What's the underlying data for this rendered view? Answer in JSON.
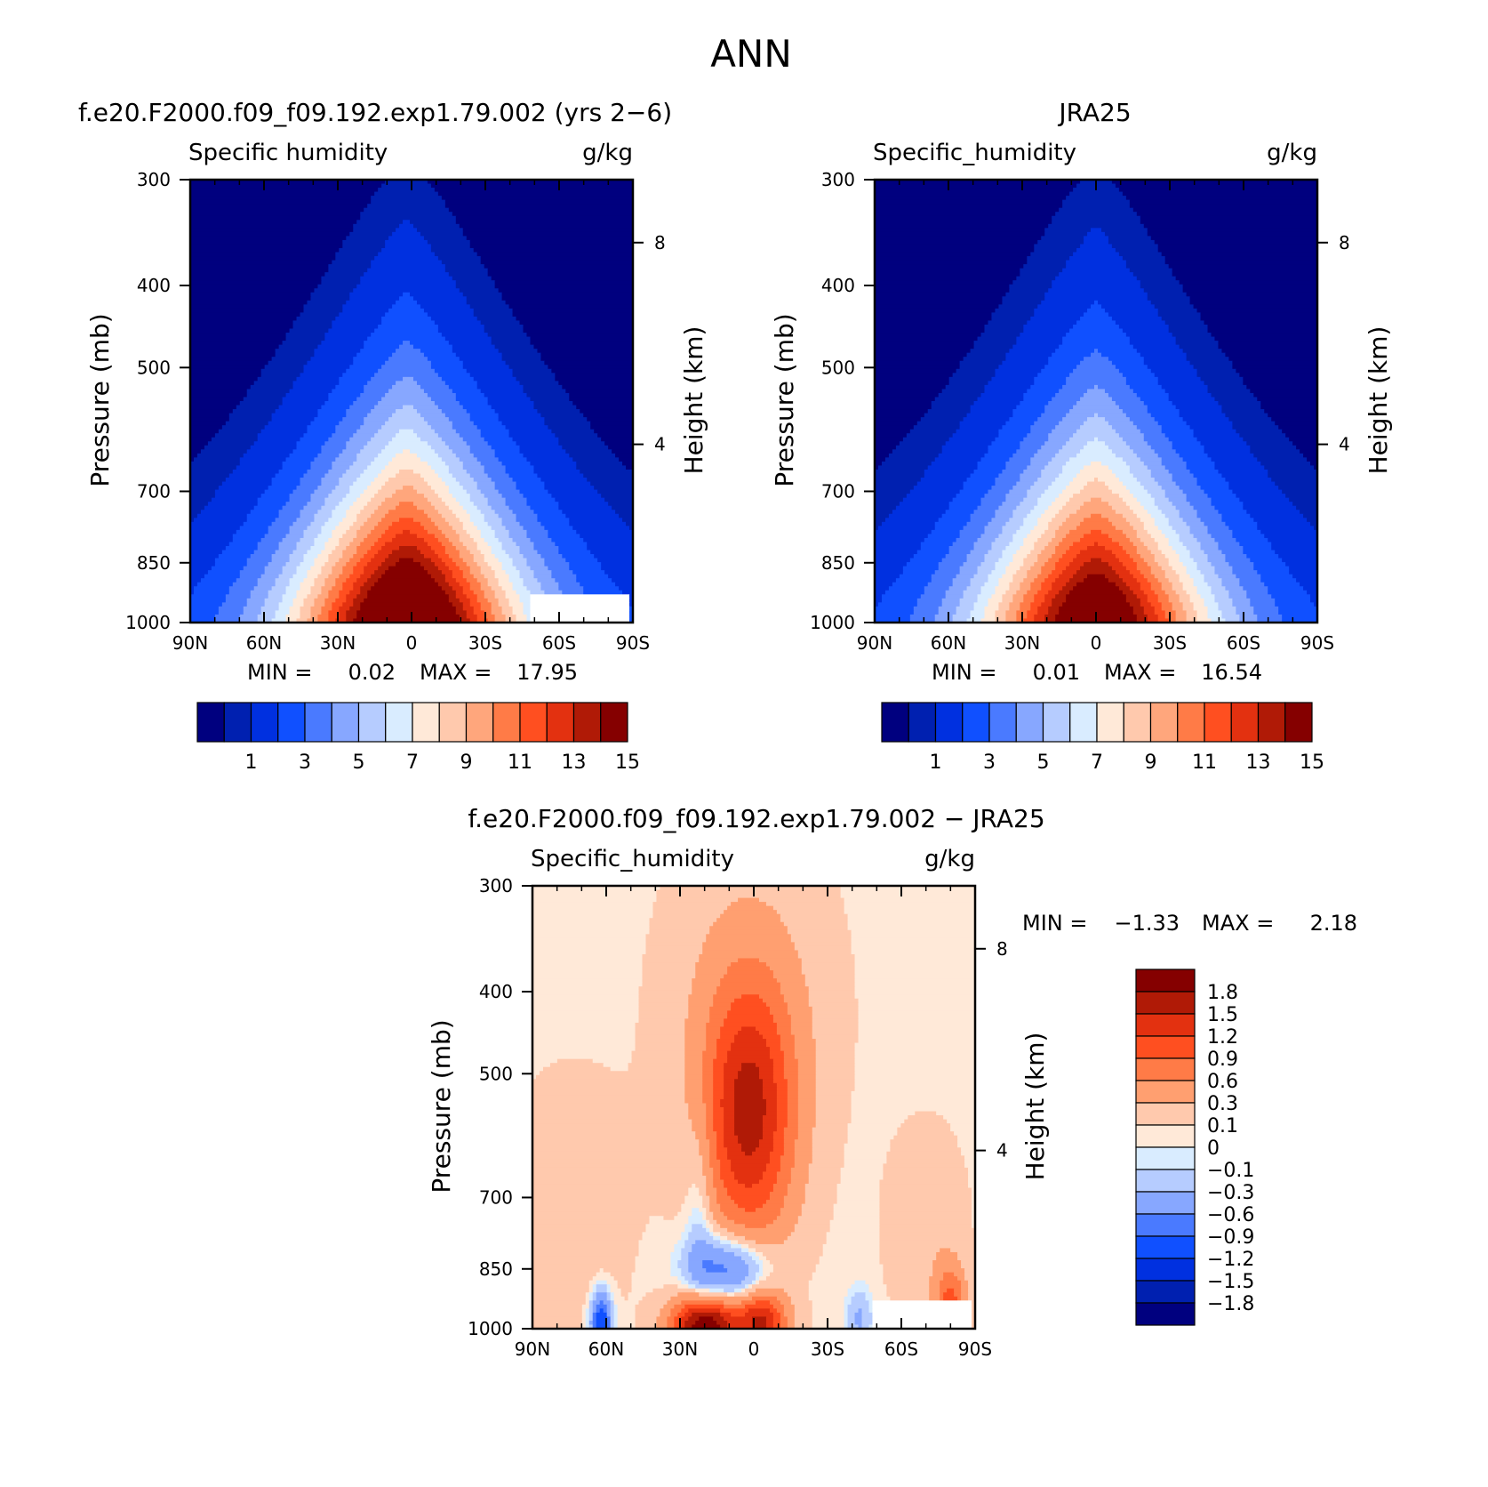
{
  "figure": {
    "title": "ANN"
  },
  "palettes": {
    "abs": [
      "#00007f",
      "#0020b0",
      "#0030e0",
      "#1050ff",
      "#4a7aff",
      "#87a7ff",
      "#b6ccff",
      "#d9ecff",
      "#ffe9d8",
      "#ffc9ad",
      "#ffa67c",
      "#ff7b47",
      "#ff4f20",
      "#e33110",
      "#b01a06",
      "#850000"
    ],
    "diff": [
      "#00007f",
      "#0020b0",
      "#0030e0",
      "#1050ff",
      "#4a7aff",
      "#87a7ff",
      "#b6ccff",
      "#d9ecff",
      "#ffe9d8",
      "#ffc9ad",
      "#ff9f70",
      "#ff7b47",
      "#ff4f20",
      "#e33110",
      "#b01a06",
      "#850000"
    ]
  },
  "chart_data": [
    {
      "type": "heatmap",
      "id": "model",
      "title": "f.e20.F2000.f09_f09.192.exp1.79.002 (yrs 2−6)",
      "left_label": "Specific humidity",
      "right_label": "g/kg",
      "ylabel": "Pressure (mb)",
      "ylabel_right": "Height (km)",
      "x_ticks": [
        "90N",
        "60N",
        "30N",
        "0",
        "30S",
        "60S",
        "90S"
      ],
      "x_values": [
        90,
        60,
        30,
        0,
        -30,
        -60,
        -90
      ],
      "y_ticks": [
        "300",
        "400",
        "500",
        "700",
        "850",
        "1000"
      ],
      "y_values": [
        300,
        400,
        500,
        700,
        850,
        1000
      ],
      "y_scale": "log",
      "y_right_ticks": [
        "8",
        "4"
      ],
      "y_right_values_mb": [
        356,
        616
      ],
      "stats": {
        "min_label": "MIN =",
        "min": "0.02",
        "max_label": "MAX =",
        "max": "17.95"
      },
      "colorbar": {
        "levels": [
          0.5,
          1,
          2,
          3,
          4,
          5,
          6,
          7,
          8,
          9,
          10,
          11,
          12,
          13,
          14,
          15
        ],
        "labels": [
          "1",
          "3",
          "5",
          "7",
          "9",
          "11",
          "13",
          "15"
        ],
        "label_values": [
          1,
          3,
          5,
          7,
          9,
          11,
          13,
          15
        ]
      },
      "peak_g_per_kg": 17.95,
      "center_lat": 2,
      "zonal_structure": "moisture maximum near equator at surface, decreasing with height and latitude",
      "masked_regions": [
        {
          "lat_from": -48,
          "lat_to": -88,
          "p_from": 930,
          "p_to": 1000
        }
      ]
    },
    {
      "type": "heatmap",
      "id": "obs",
      "title": "JRA25",
      "left_label": "Specific_humidity",
      "right_label": "g/kg",
      "ylabel": "Pressure (mb)",
      "ylabel_right": "Height (km)",
      "x_ticks": [
        "90N",
        "60N",
        "30N",
        "0",
        "30S",
        "60S",
        "90S"
      ],
      "x_values": [
        90,
        60,
        30,
        0,
        -30,
        -60,
        -90
      ],
      "y_ticks": [
        "300",
        "400",
        "500",
        "700",
        "850",
        "1000"
      ],
      "y_values": [
        300,
        400,
        500,
        700,
        850,
        1000
      ],
      "y_scale": "log",
      "y_right_ticks": [
        "8",
        "4"
      ],
      "y_right_values_mb": [
        356,
        616
      ],
      "stats": {
        "min_label": "MIN =",
        "min": "0.01",
        "max_label": "MAX =",
        "max": "16.54"
      },
      "colorbar": {
        "levels": [
          0.5,
          1,
          2,
          3,
          4,
          5,
          6,
          7,
          8,
          9,
          10,
          11,
          12,
          13,
          14,
          15
        ],
        "labels": [
          "1",
          "3",
          "5",
          "7",
          "9",
          "11",
          "13",
          "15"
        ],
        "label_values": [
          1,
          3,
          5,
          7,
          9,
          11,
          13,
          15
        ]
      },
      "peak_g_per_kg": 16.54,
      "center_lat": 0
    },
    {
      "type": "heatmap",
      "id": "diff",
      "title": "f.e20.F2000.f09_f09.192.exp1.79.002 − JRA25",
      "left_label": "Specific_humidity",
      "right_label": "g/kg",
      "ylabel": "Pressure (mb)",
      "ylabel_right": "Height (km)",
      "x_ticks": [
        "90N",
        "60N",
        "30N",
        "0",
        "30S",
        "60S",
        "90S"
      ],
      "x_values": [
        90,
        60,
        30,
        0,
        -30,
        -60,
        -90
      ],
      "y_ticks": [
        "300",
        "400",
        "500",
        "700",
        "850",
        "1000"
      ],
      "y_values": [
        300,
        400,
        500,
        700,
        850,
        1000
      ],
      "y_scale": "log",
      "y_right_ticks": [
        "8",
        "4"
      ],
      "y_right_values_mb": [
        356,
        616
      ],
      "stats": {
        "min_label": "MIN =",
        "min": "−1.33",
        "max_label": "MAX =",
        "max": "2.18"
      },
      "colorbar": {
        "levels": [
          -1.8,
          -1.5,
          -1.2,
          -0.9,
          -0.6,
          -0.3,
          -0.1,
          0,
          0.1,
          0.3,
          0.6,
          0.9,
          1.2,
          1.5,
          1.8
        ],
        "labels": [
          "1.8",
          "1.5",
          "1.2",
          "0.9",
          "0.6",
          "0.3",
          "0.1",
          "0",
          "−0.1",
          "−0.3",
          "−0.6",
          "−0.9",
          "−1.2",
          "−1.5",
          "−1.8"
        ]
      },
      "features": [
        {
          "lat": 2,
          "p": 560,
          "value": 1.4,
          "note": "moist anomaly mid-troposphere"
        },
        {
          "lat": 22,
          "p": 985,
          "value": 2.1,
          "note": "surface moist anomaly"
        },
        {
          "lat": 10,
          "p": 855,
          "value": -0.8,
          "note": "dry anomaly lower troposphere"
        },
        {
          "lat": 62,
          "p": 980,
          "value": -1.2,
          "note": "dry anomaly high latitudes"
        }
      ],
      "masked_regions": [
        {
          "lat_from": -48,
          "lat_to": -88,
          "p_from": 930,
          "p_to": 1000
        }
      ]
    }
  ]
}
